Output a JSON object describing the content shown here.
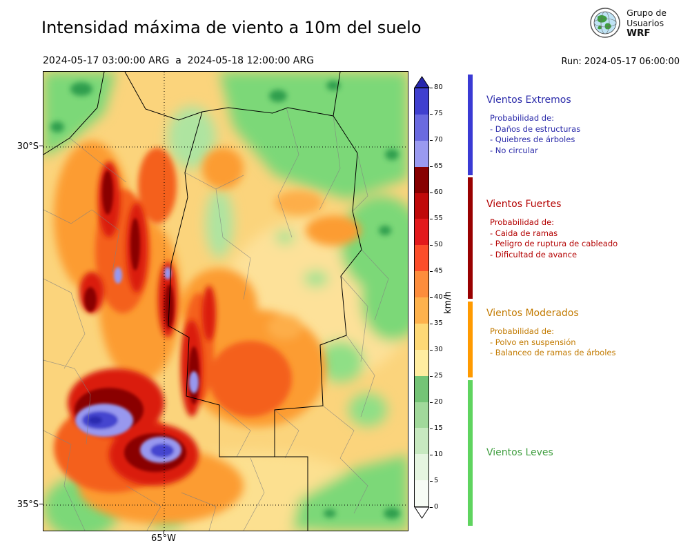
{
  "header": {
    "title": "Intensidad máxima de viento a 10m del suelo",
    "date_range": "2024-05-17 03:00:00 ARG  a  2024-05-18 12:00:00 ARG",
    "run": "Run: 2024-05-17 06:00:00",
    "logo": {
      "line1": "Grupo de",
      "line2": "Usuarios",
      "line3": "WRF"
    }
  },
  "axes": {
    "lat_top": "30°S",
    "lat_bottom": "35°S",
    "lon": "65°W"
  },
  "colorbar": {
    "unit": "km/h",
    "range": [
      0,
      80
    ],
    "ticks": [
      "0",
      "5",
      "10",
      "15",
      "20",
      "25",
      "30",
      "35",
      "40",
      "45",
      "50",
      "55",
      "60",
      "65",
      "70",
      "75",
      "80"
    ],
    "colors": [
      "#f7fcf5",
      "#e5f5e0",
      "#c7e9c0",
      "#a1d99b",
      "#74c476",
      "#ffeda0",
      "#fed976",
      "#feb24c",
      "#fd8d3c",
      "#fc4e2a",
      "#e31a1c",
      "#c00a0a",
      "#870000",
      "#9a9af0",
      "#6a6ae0",
      "#4040cf"
    ],
    "over_color": "#2727ad",
    "under_color": "#ffffff"
  },
  "legend": {
    "sections": [
      {
        "title": "Vientos Extremos",
        "color": "#2b2baa",
        "bar_color": "#3a3ad4",
        "intro": "Probabilidad de:",
        "items": [
          "- Daños de estructuras",
          "- Quiebres de árboles",
          "- No circular"
        ]
      },
      {
        "title": "Vientos Fuertes",
        "color": "#b30000",
        "bar_color": "#990000",
        "intro": "Probabilidad de:",
        "items": [
          "- Caida de ramas",
          "- Peligro de ruptura de cableado",
          "- Dificultad de avance"
        ]
      },
      {
        "title": "Vientos Moderados",
        "color": "#c27a00",
        "bar_color": "#ff9a00",
        "intro": "Probabilidad de:",
        "items": [
          "- Polvo en suspensión",
          "- Balanceo de ramas de árboles"
        ]
      },
      {
        "title": "Vientos Leves",
        "color": "#3f9e3f",
        "bar_color": "#5fd45f",
        "intro": "",
        "items": []
      }
    ]
  }
}
